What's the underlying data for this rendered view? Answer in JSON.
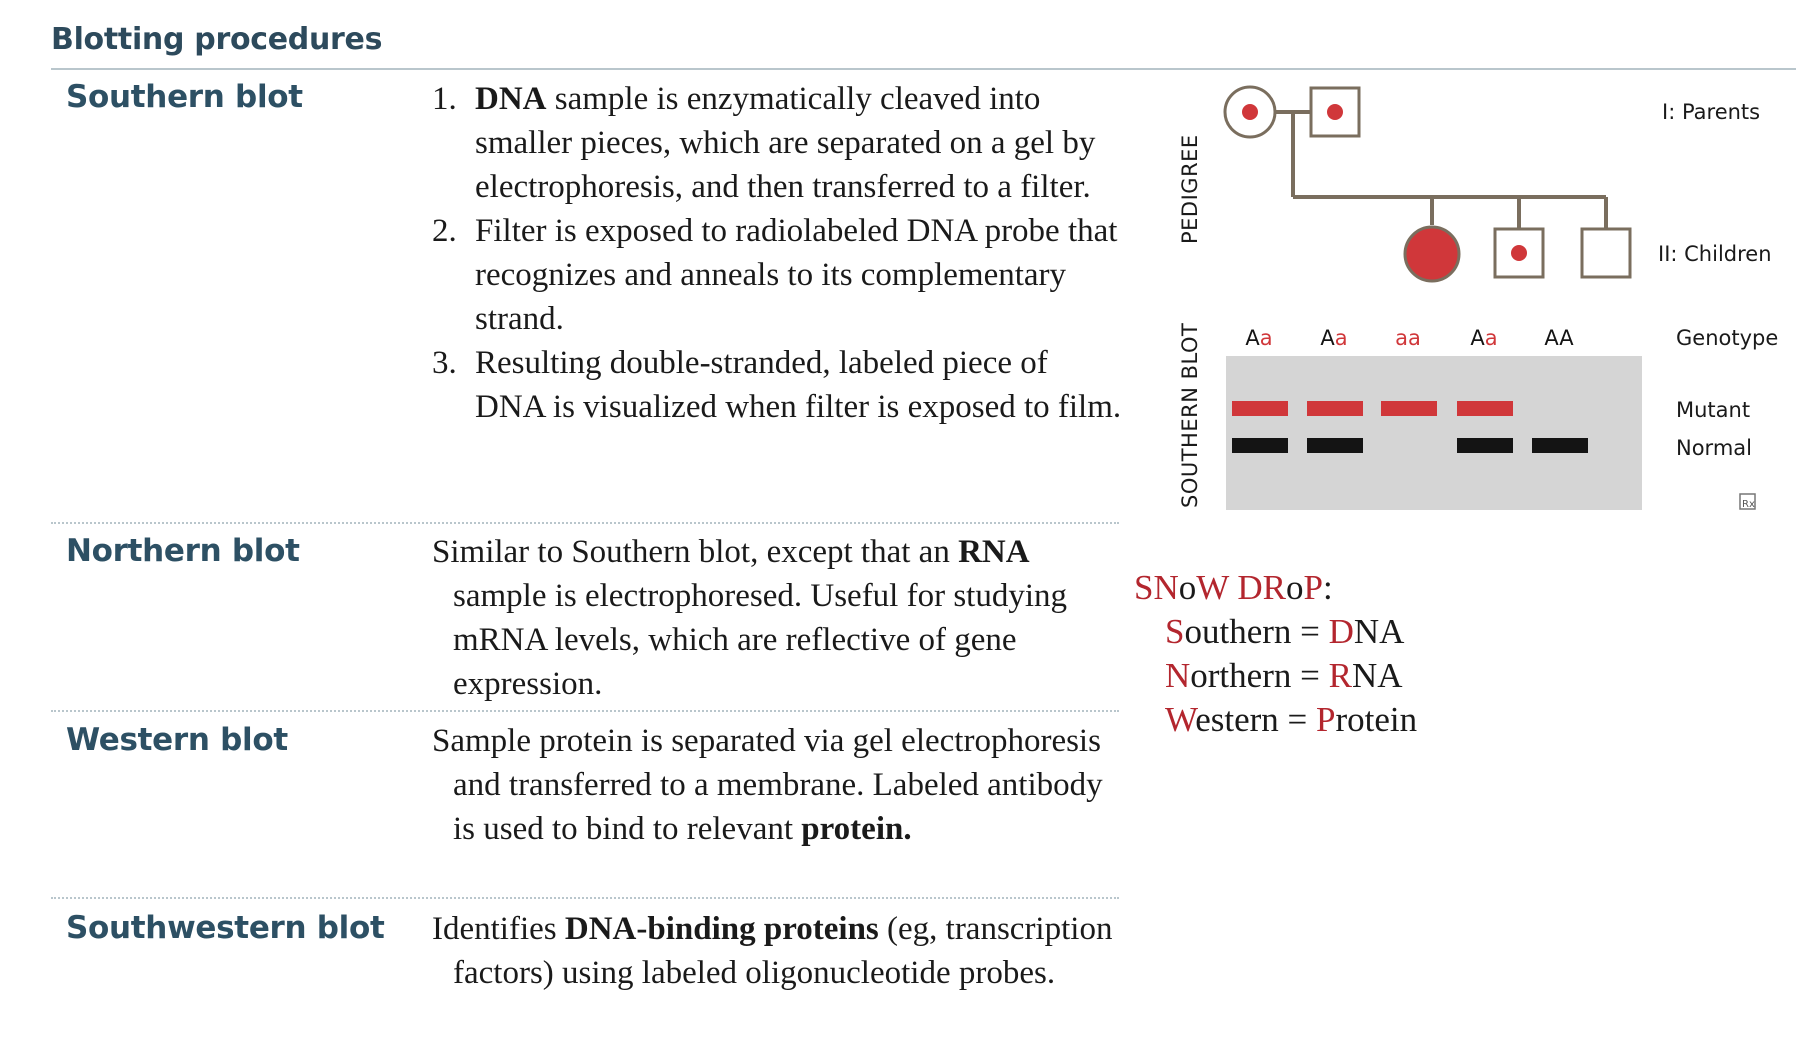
{
  "heading": "Blotting procedures",
  "rows": {
    "southern": {
      "label": "Southern blot",
      "steps": [
        {
          "num": "1.",
          "bold": "DNA",
          "text": " sample is enzymatically cleaved into smaller pieces, which are separated on a gel by electrophoresis, and then transferred to a filter."
        },
        {
          "num": "2.",
          "text": "Filter is exposed to radiolabeled DNA probe that recognizes and anneals to its complementary strand."
        },
        {
          "num": "3.",
          "text": "Resulting double-stranded, labeled piece of DNA is visualized when filter is exposed to film."
        }
      ]
    },
    "northern": {
      "label": "Northern blot",
      "pre": "Similar to Southern blot, except that an ",
      "bold": "RNA",
      "post": " sample is electrophoresed. Useful for studying mRNA levels, which are reflective of gene expression."
    },
    "western": {
      "label": "Western blot",
      "pre": "Sample protein is separated via gel electrophoresis and transferred to a membrane. Labeled antibody is used to bind to relevant ",
      "bold": "protein."
    },
    "southwestern": {
      "label": "Southwestern blot",
      "pre": "Identifies ",
      "bold": "DNA-binding proteins",
      "post": " (eg, transcription factors) using labeled oligonucleotide probes."
    }
  },
  "figure": {
    "pedigree_label": "PEDIGREE",
    "blot_label": "SOUTHERN BLOT",
    "gen1_label": "I: Parents",
    "gen2_label": "II: Children",
    "genotype_label": "Genotype",
    "mutant_label": "Mutant",
    "normal_label": "Normal",
    "rx_icon": "Rx",
    "genotypes": [
      {
        "dom": "A",
        "rec": "a"
      },
      {
        "dom": "A",
        "rec": "a"
      },
      {
        "dom": "",
        "rec": "aa"
      },
      {
        "dom": "A",
        "rec": "a"
      },
      {
        "dom": "AA",
        "rec": ""
      }
    ],
    "colors": {
      "mutant": "#d0373a",
      "normal": "#141414",
      "gel": "#d5d5d5",
      "line": "#7a6e5e"
    }
  },
  "mnemonic": {
    "title_red1": "SN",
    "title_black1": "o",
    "title_red2": "W DR",
    "title_black2": "o",
    "title_red3": "P",
    "title_colon": ":",
    "lines": [
      {
        "i1": "S",
        "r1": "outhern = ",
        "i2": "D",
        "r2": "NA"
      },
      {
        "i1": "N",
        "r1": "orthern = ",
        "i2": "R",
        "r2": "NA"
      },
      {
        "i1": "W",
        "r1": "estern = ",
        "i2": "P",
        "r2": "rotein"
      }
    ]
  }
}
